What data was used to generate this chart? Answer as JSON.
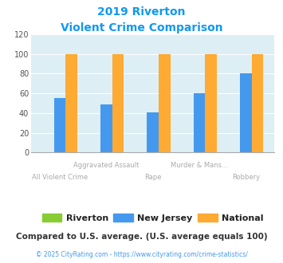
{
  "title_line1": "2019 Riverton",
  "title_line2": "Violent Crime Comparison",
  "categories": [
    "All Violent Crime",
    "Aggravated Assault",
    "Rape",
    "Murder & Mans...",
    "Robbery"
  ],
  "series": {
    "Riverton": [
      0,
      0,
      0,
      0,
      0
    ],
    "New Jersey": [
      55,
      49,
      41,
      60,
      80
    ],
    "National": [
      100,
      100,
      100,
      100,
      100
    ]
  },
  "colors": {
    "Riverton": "#88cc33",
    "New Jersey": "#4499ee",
    "National": "#ffaa33"
  },
  "ylim": [
    0,
    120
  ],
  "yticks": [
    0,
    20,
    40,
    60,
    80,
    100,
    120
  ],
  "bar_width": 0.25,
  "plot_bg": "#ddeef5",
  "title_color": "#1199ee",
  "xlabel_color": "#aaaaaa",
  "legend_label_color": "#222222",
  "footer_note": "Compared to U.S. average. (U.S. average equals 100)",
  "footer_note_color": "#333333",
  "footer_url": "© 2025 CityRating.com - https://www.cityrating.com/crime-statistics/",
  "footer_url_color": "#4499ee",
  "grid_color": "#ffffff",
  "axis_line_color": "#aaaaaa"
}
